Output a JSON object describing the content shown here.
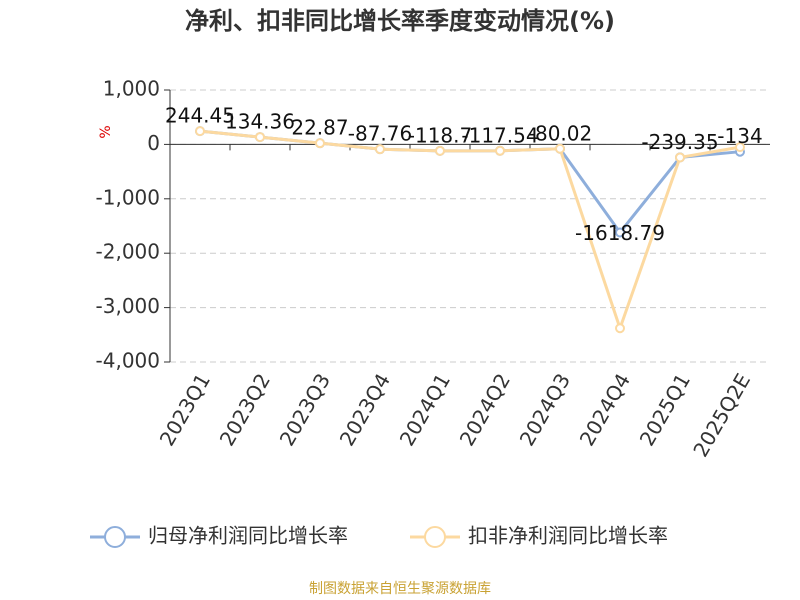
{
  "chart_data": {
    "type": "line",
    "title": "净利、扣非同比增长率季度变动情况(%)",
    "y_label": "%",
    "categories": [
      "2023Q1",
      "2023Q2",
      "2023Q3",
      "2023Q4",
      "2024Q1",
      "2024Q2",
      "2024Q3",
      "2024Q4",
      "2025Q1",
      "2025Q2E"
    ],
    "series": [
      {
        "name": "归母净利润同比增长率",
        "color": "#8eaedb",
        "values": [
          244.45,
          134.36,
          22.87,
          -87.76,
          -118.7,
          -117.54,
          -80.02,
          -1618.79,
          -239.35,
          -134
        ],
        "show_labels": true
      },
      {
        "name": "扣非净利润同比增长率",
        "color": "#fcd9a0",
        "values": [
          244.45,
          134.36,
          22.87,
          -87.76,
          -118.7,
          -117.54,
          -80.02,
          -3380,
          -240,
          -50
        ],
        "show_labels": false
      }
    ],
    "ylim": [
      -4000,
      1000
    ],
    "yticks": [
      {
        "value": 1000,
        "label": "1,000"
      },
      0,
      {
        "value": -1000,
        "label": "-1,000"
      },
      {
        "value": -2000,
        "label": "-2,000"
      },
      {
        "value": -3000,
        "label": "-3,000"
      },
      {
        "value": -4000,
        "label": "-4,000"
      }
    ],
    "grid": true,
    "legend": "bottom",
    "source": "制图数据来自恒生聚源数据库"
  }
}
